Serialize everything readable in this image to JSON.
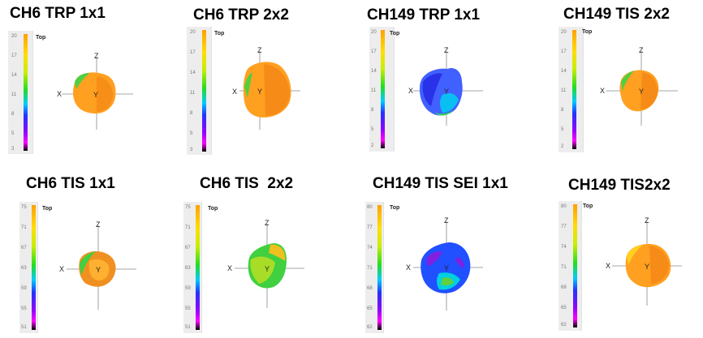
{
  "panels": [
    {
      "title": "CH6 TRP 1x1",
      "top_label": "Top",
      "ticks": [
        "20",
        "17",
        "14",
        "11",
        "8",
        "5",
        "3"
      ],
      "axes": {
        "x": "X",
        "y": "Y",
        "z": "Z"
      },
      "colors": [
        "#ffa020",
        "#f08010",
        "#c8e020",
        "#50d040"
      ]
    },
    {
      "title": "CH6 TRP 2x2",
      "top_label": "Top",
      "ticks": [
        "20",
        "17",
        "14",
        "11",
        "8",
        "5",
        "3"
      ],
      "axes": {
        "x": "X",
        "y": "Y",
        "z": "Z"
      },
      "colors": [
        "#ffa020",
        "#f07a10",
        "#d0e020",
        "#50d040"
      ]
    },
    {
      "title": "CH149 TRP 1x1",
      "top_label": "Top",
      "ticks": [
        "20",
        "17",
        "14",
        "11",
        "8",
        "5",
        "2"
      ],
      "axes": {
        "x": "X",
        "y": "Y",
        "z": "Z"
      },
      "colors": [
        "#4060ff",
        "#2020e0",
        "#00d0f0",
        "#30d060"
      ]
    },
    {
      "title": "CH149 TIS 2x2",
      "top_label": "Top",
      "ticks": [
        "20",
        "17",
        "14",
        "11",
        "8",
        "5",
        "2"
      ],
      "axes": {
        "x": "X",
        "y": "Y",
        "z": "Z"
      },
      "colors": [
        "#ffa020",
        "#f07a10",
        "#d0e020",
        "#50d040"
      ]
    },
    {
      "title": "CH6 TIS 1x1",
      "top_label": "Top",
      "ticks": [
        "75",
        "71",
        "67",
        "63",
        "59",
        "55",
        "51"
      ],
      "axes": {
        "x": "X",
        "y": "Y",
        "z": "Z"
      },
      "colors": [
        "#ffb030",
        "#f09020",
        "#40d040",
        "#20c060"
      ]
    },
    {
      "title": "CH6 TIS  2x2",
      "top_label": "Top",
      "ticks": [
        "75",
        "71",
        "67",
        "63",
        "59",
        "55",
        "51"
      ],
      "axes": {
        "x": "X",
        "y": "Y",
        "z": "Z"
      },
      "colors": [
        "#c0e020",
        "#40d040",
        "#f0c020",
        "#30c050"
      ]
    },
    {
      "title": "CH149 TIS SEI 1x1",
      "top_label": "Top",
      "ticks": [
        "80",
        "77",
        "74",
        "71",
        "68",
        "65",
        "62"
      ],
      "axes": {
        "x": "X",
        "y": "Y",
        "z": "Z"
      },
      "colors": [
        "#2050ff",
        "#8020e0",
        "#00d0e0",
        "#60d040"
      ]
    },
    {
      "title": "CH149 TIS2x2",
      "top_label": "Top",
      "ticks": [
        "80",
        "77",
        "74",
        "71",
        "68",
        "65",
        "62"
      ],
      "axes": {
        "x": "X",
        "y": "Y",
        "z": "Z"
      },
      "colors": [
        "#ffa020",
        "#f07a10",
        "#ffd020",
        "#e08010"
      ]
    }
  ]
}
